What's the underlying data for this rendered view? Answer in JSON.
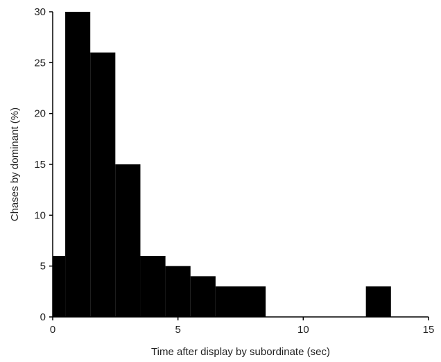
{
  "chart_data": {
    "type": "bar",
    "title": "",
    "xlabel": "Time after display by subordinate (sec)",
    "ylabel": "Chases by dominant (%)",
    "xlim": [
      0,
      15
    ],
    "ylim": [
      0,
      30
    ],
    "xticks": [
      "0",
      "5",
      "10",
      "15"
    ],
    "yticks": [
      "0",
      "5",
      "10",
      "15",
      "20",
      "25",
      "30"
    ],
    "bin_width": 1,
    "bar_color": "#000000",
    "grid": false,
    "legend": "none",
    "bins": [
      {
        "x0": 0,
        "x1": 0.5,
        "value": 6
      },
      {
        "x0": 0.5,
        "x1": 1.5,
        "value": 30
      },
      {
        "x0": 1.5,
        "x1": 2.5,
        "value": 26
      },
      {
        "x0": 2.5,
        "x1": 3.5,
        "value": 15
      },
      {
        "x0": 3.5,
        "x1": 4.5,
        "value": 6
      },
      {
        "x0": 4.5,
        "x1": 5.5,
        "value": 5
      },
      {
        "x0": 5.5,
        "x1": 6.5,
        "value": 4
      },
      {
        "x0": 6.5,
        "x1": 7.5,
        "value": 3
      },
      {
        "x0": 7.5,
        "x1": 8.5,
        "value": 3
      },
      {
        "x0": 12.5,
        "x1": 13.5,
        "value": 3
      }
    ]
  }
}
